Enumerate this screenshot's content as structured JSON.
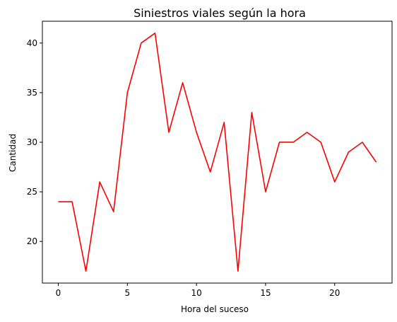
{
  "chart_data": {
    "type": "line",
    "title": "Siniestros viales según la hora",
    "xlabel": "Hora del suceso",
    "ylabel": "Cantidad",
    "xlim": [
      -1.15,
      24.15
    ],
    "ylim": [
      15.8,
      42.2
    ],
    "x_ticks": [
      0,
      5,
      10,
      15,
      20
    ],
    "y_ticks": [
      20,
      25,
      30,
      35,
      40
    ],
    "grid": false,
    "series": [
      {
        "color": "#ff0000",
        "x": [
          0,
          1,
          2,
          3,
          4,
          5,
          6,
          7,
          8,
          9,
          10,
          11,
          12,
          13,
          14,
          15,
          16,
          17,
          18,
          19,
          20,
          21,
          22,
          23
        ],
        "values": [
          24,
          24,
          17,
          26,
          23,
          35,
          40,
          41,
          31,
          36,
          31,
          27,
          32,
          17,
          33,
          25,
          30,
          30,
          31,
          30,
          26,
          29,
          30,
          28
        ]
      }
    ]
  }
}
